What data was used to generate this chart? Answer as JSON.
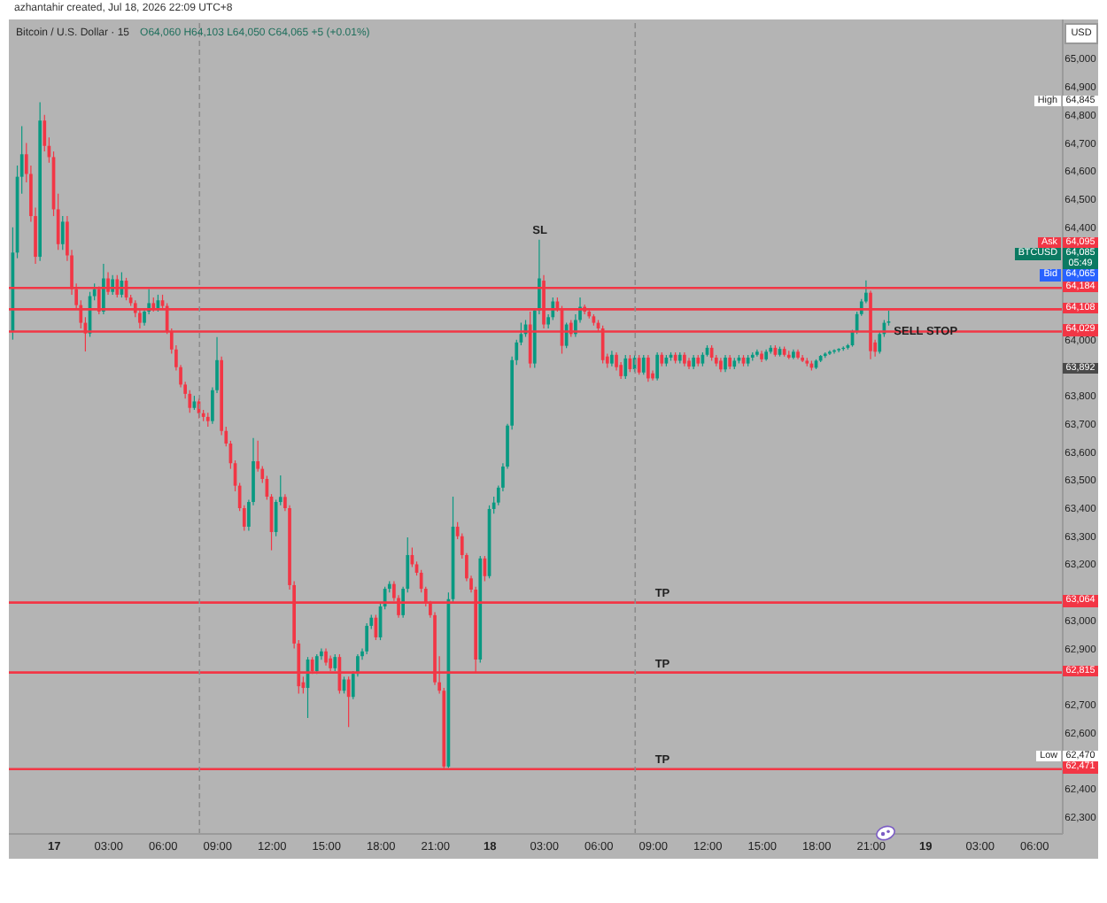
{
  "chart_data": {
    "type": "candlestick",
    "title": "Bitcoin / U.S. Dollar · 15",
    "subtitle": "O64,060 H64,103 L64,050 C64,065 +5 (+0.01%)",
    "ylabel": "USD",
    "annotations": [
      "azhantahir created, Jul 18, 2026 22:09 UTC+8",
      "Ask",
      "64,095",
      "BTCUSD",
      "64,085",
      "05:49",
      "Bid",
      "64,065",
      {
        "text": "SL",
        "x": "2026-07-18T02:45",
        "y": 64356
      },
      {
        "text": "TP",
        "x": "2026-07-18T09:30",
        "y": 63064
      },
      {
        "text": "TP",
        "x": "2026-07-18T09:30",
        "y": 62815
      },
      {
        "text": "TP",
        "x": "2026-07-18T09:30",
        "y": 62471
      },
      {
        "text": "SELL STOP",
        "x": "2026-07-19T00:00",
        "y": 64000
      },
      {
        "text": "High",
        "y": 64845
      },
      {
        "text": "64,845",
        "y": 64845
      },
      {
        "text": "63,892",
        "y": 63892
      },
      {
        "text": "Low",
        "y": 62470
      },
      {
        "text": "62,470",
        "y": 62470
      }
    ],
    "x": [
      "2026-07-16T21:45",
      "2026-07-16T22:00",
      "2026-07-16T22:15",
      "2026-07-16T22:30",
      "2026-07-16T22:45",
      "2026-07-16T23:00",
      "2026-07-16T23:15",
      "2026-07-16T23:30",
      "2026-07-16T23:45",
      "2026-07-17T00:00",
      "2026-07-17T00:15",
      "2026-07-17T00:30",
      "2026-07-17T00:45",
      "2026-07-17T01:00",
      "2026-07-17T01:15",
      "2026-07-17T01:30",
      "2026-07-17T01:45",
      "2026-07-17T02:00",
      "2026-07-17T02:15",
      "2026-07-17T02:30",
      "2026-07-17T02:45",
      "2026-07-17T03:00",
      "2026-07-17T03:15",
      "2026-07-17T03:30",
      "2026-07-17T03:45",
      "2026-07-17T04:00",
      "2026-07-17T04:15",
      "2026-07-17T04:30",
      "2026-07-17T04:45",
      "2026-07-17T05:00",
      "2026-07-17T05:15",
      "2026-07-17T05:30",
      "2026-07-17T05:45",
      "2026-07-17T06:00",
      "2026-07-17T06:15",
      "2026-07-17T06:30",
      "2026-07-17T06:45",
      "2026-07-17T07:00",
      "2026-07-17T07:15",
      "2026-07-17T07:30",
      "2026-07-17T07:45",
      "2026-07-17T08:00",
      "2026-07-17T08:15",
      "2026-07-17T08:30",
      "2026-07-17T08:45",
      "2026-07-17T09:00",
      "2026-07-17T09:15",
      "2026-07-17T09:30",
      "2026-07-17T09:45",
      "2026-07-17T10:00",
      "2026-07-17T10:15",
      "2026-07-17T10:30",
      "2026-07-17T10:45",
      "2026-07-17T11:00",
      "2026-07-17T11:15",
      "2026-07-17T11:30",
      "2026-07-17T11:45",
      "2026-07-17T12:00",
      "2026-07-17T12:15",
      "2026-07-17T12:30",
      "2026-07-17T12:45",
      "2026-07-17T13:00",
      "2026-07-17T13:15",
      "2026-07-17T13:30",
      "2026-07-17T13:45",
      "2026-07-17T14:00",
      "2026-07-17T14:15",
      "2026-07-17T14:30",
      "2026-07-17T14:45",
      "2026-07-17T15:00",
      "2026-07-17T15:15",
      "2026-07-17T15:30",
      "2026-07-17T15:45",
      "2026-07-17T16:00",
      "2026-07-17T16:15",
      "2026-07-17T16:30",
      "2026-07-17T16:45",
      "2026-07-17T17:00",
      "2026-07-17T17:15",
      "2026-07-17T17:30",
      "2026-07-17T17:45",
      "2026-07-17T18:00",
      "2026-07-17T18:15",
      "2026-07-17T18:30",
      "2026-07-17T18:45",
      "2026-07-17T19:00",
      "2026-07-17T19:15",
      "2026-07-17T19:30",
      "2026-07-17T19:45",
      "2026-07-17T20:00",
      "2026-07-17T20:15",
      "2026-07-17T20:30",
      "2026-07-17T20:45",
      "2026-07-17T21:00",
      "2026-07-17T21:15",
      "2026-07-17T21:30",
      "2026-07-17T21:45",
      "2026-07-17T22:00",
      "2026-07-17T22:15",
      "2026-07-17T22:30",
      "2026-07-17T22:45",
      "2026-07-17T23:00",
      "2026-07-17T23:15",
      "2026-07-17T23:30",
      "2026-07-17T23:45",
      "2026-07-18T00:00",
      "2026-07-18T00:15",
      "2026-07-18T00:30",
      "2026-07-18T00:45",
      "2026-07-18T01:00",
      "2026-07-18T01:15",
      "2026-07-18T01:30",
      "2026-07-18T01:45",
      "2026-07-18T02:00",
      "2026-07-18T02:15",
      "2026-07-18T02:30",
      "2026-07-18T02:45",
      "2026-07-18T03:00",
      "2026-07-18T03:15",
      "2026-07-18T03:30",
      "2026-07-18T03:45",
      "2026-07-18T04:00",
      "2026-07-18T04:15",
      "2026-07-18T04:30",
      "2026-07-18T04:45",
      "2026-07-18T05:00",
      "2026-07-18T05:15",
      "2026-07-18T05:30",
      "2026-07-18T05:45",
      "2026-07-18T06:00",
      "2026-07-18T06:15",
      "2026-07-18T06:30",
      "2026-07-18T06:45",
      "2026-07-18T07:00",
      "2026-07-18T07:15",
      "2026-07-18T07:30",
      "2026-07-18T07:45",
      "2026-07-18T08:00",
      "2026-07-18T08:15",
      "2026-07-18T08:30",
      "2026-07-18T08:45",
      "2026-07-18T09:00",
      "2026-07-18T09:15",
      "2026-07-18T09:30",
      "2026-07-18T09:45",
      "2026-07-18T10:00",
      "2026-07-18T10:15",
      "2026-07-18T10:30",
      "2026-07-18T10:45",
      "2026-07-18T11:00",
      "2026-07-18T11:15",
      "2026-07-18T11:30",
      "2026-07-18T11:45",
      "2026-07-18T12:00",
      "2026-07-18T12:15",
      "2026-07-18T12:30",
      "2026-07-18T12:45",
      "2026-07-18T13:00",
      "2026-07-18T13:15",
      "2026-07-18T13:30",
      "2026-07-18T13:45",
      "2026-07-18T14:00",
      "2026-07-18T14:15",
      "2026-07-18T14:30",
      "2026-07-18T14:45",
      "2026-07-18T15:00",
      "2026-07-18T15:15",
      "2026-07-18T15:30",
      "2026-07-18T15:45",
      "2026-07-18T16:00",
      "2026-07-18T16:15",
      "2026-07-18T16:30",
      "2026-07-18T16:45",
      "2026-07-18T17:00",
      "2026-07-18T17:15",
      "2026-07-18T17:30",
      "2026-07-18T17:45",
      "2026-07-18T18:00",
      "2026-07-18T18:15",
      "2026-07-18T18:30",
      "2026-07-18T18:45",
      "2026-07-18T19:00",
      "2026-07-18T19:15",
      "2026-07-18T19:30",
      "2026-07-18T19:45",
      "2026-07-18T20:00",
      "2026-07-18T20:15",
      "2026-07-18T20:30",
      "2026-07-18T20:45",
      "2026-07-18T21:00",
      "2026-07-18T21:15",
      "2026-07-18T21:30",
      "2026-07-18T21:45",
      "2026-07-18T22:00"
    ],
    "ohlc": [
      [
        64030,
        64400,
        64000,
        64310
      ],
      [
        64310,
        64620,
        64290,
        64580
      ],
      [
        64580,
        64760,
        64520,
        64660
      ],
      [
        64660,
        64700,
        64560,
        64590
      ],
      [
        64590,
        64620,
        64420,
        64440
      ],
      [
        64440,
        64470,
        64270,
        64295
      ],
      [
        64295,
        64845,
        64280,
        64780
      ],
      [
        64780,
        64800,
        64670,
        64690
      ],
      [
        64690,
        64720,
        64630,
        64650
      ],
      [
        64650,
        64670,
        64440,
        64464
      ],
      [
        64464,
        64520,
        64320,
        64340
      ],
      [
        64340,
        64440,
        64320,
        64420
      ],
      [
        64420,
        64440,
        64280,
        64300
      ],
      [
        64300,
        64320,
        64160,
        64180
      ],
      [
        64180,
        64200,
        64110,
        64123
      ],
      [
        64123,
        64140,
        64040,
        64060
      ],
      [
        64060,
        64080,
        63958,
        64022
      ],
      [
        64022,
        64170,
        64010,
        64155
      ],
      [
        64155,
        64200,
        64140,
        64180
      ],
      [
        64180,
        64190,
        64090,
        64100
      ],
      [
        64100,
        64270,
        64090,
        64218
      ],
      [
        64218,
        64240,
        64160,
        64170
      ],
      [
        64170,
        64230,
        64160,
        64215
      ],
      [
        64215,
        64230,
        64150,
        64160
      ],
      [
        64160,
        64240,
        64150,
        64210
      ],
      [
        64210,
        64220,
        64140,
        64150
      ],
      [
        64150,
        64160,
        64120,
        64130
      ],
      [
        64130,
        64140,
        64080,
        64095
      ],
      [
        64095,
        64110,
        64040,
        64060
      ],
      [
        64060,
        64110,
        64050,
        64100
      ],
      [
        64100,
        64180,
        64090,
        64130
      ],
      [
        64130,
        64150,
        64100,
        64110
      ],
      [
        64110,
        64160,
        64100,
        64140
      ],
      [
        64140,
        64160,
        64110,
        64120
      ],
      [
        64120,
        64130,
        64020,
        64030
      ],
      [
        64030,
        64040,
        63950,
        63965
      ],
      [
        63965,
        63980,
        63890,
        63902
      ],
      [
        63902,
        63910,
        63830,
        63840
      ],
      [
        63840,
        63850,
        63790,
        63807
      ],
      [
        63807,
        63820,
        63740,
        63757
      ],
      [
        63757,
        63800,
        63750,
        63780
      ],
      [
        63780,
        63790,
        63720,
        63738
      ],
      [
        63738,
        63750,
        63710,
        63725
      ],
      [
        63725,
        63740,
        63690,
        63710
      ],
      [
        63710,
        63830,
        63700,
        63820
      ],
      [
        63820,
        64009,
        63810,
        63927
      ],
      [
        63927,
        63940,
        63660,
        63675
      ],
      [
        63675,
        63690,
        63620,
        63630
      ],
      [
        63630,
        63640,
        63540,
        63560
      ],
      [
        63560,
        63570,
        63460,
        63480
      ],
      [
        63480,
        63490,
        63390,
        63400
      ],
      [
        63400,
        63410,
        63320,
        63334
      ],
      [
        63334,
        63430,
        63320,
        63422
      ],
      [
        63422,
        63650,
        63410,
        63567
      ],
      [
        63567,
        63640,
        63530,
        63540
      ],
      [
        63540,
        63550,
        63490,
        63504
      ],
      [
        63504,
        63515,
        63430,
        63441
      ],
      [
        63441,
        63450,
        63250,
        63315
      ],
      [
        63315,
        63430,
        63300,
        63422
      ],
      [
        63422,
        63517,
        63410,
        63440
      ],
      [
        63440,
        63450,
        63390,
        63400
      ],
      [
        63400,
        63410,
        63110,
        63126
      ],
      [
        63126,
        63140,
        62900,
        62918
      ],
      [
        62918,
        62930,
        62740,
        62766
      ],
      [
        62780,
        62800,
        62740,
        62760
      ],
      [
        62760,
        62870,
        62653,
        62861
      ],
      [
        62861,
        62870,
        62810,
        62820
      ],
      [
        62820,
        62880,
        62810,
        62873
      ],
      [
        62873,
        62900,
        62860,
        62890
      ],
      [
        62890,
        62900,
        62840,
        62850
      ],
      [
        62865,
        62875,
        62820,
        62830
      ],
      [
        62830,
        62880,
        62820,
        62870
      ],
      [
        62870,
        62880,
        62740,
        62750
      ],
      [
        62750,
        62800,
        62740,
        62790
      ],
      [
        62790,
        62800,
        62621,
        62728
      ],
      [
        62728,
        62820,
        62720,
        62810
      ],
      [
        62810,
        62880,
        62800,
        62873
      ],
      [
        62873,
        62900,
        62860,
        62890
      ],
      [
        62890,
        62990,
        62880,
        62981
      ],
      [
        62981,
        63020,
        62970,
        63010
      ],
      [
        63010,
        63020,
        62930,
        62940
      ],
      [
        62940,
        63060,
        62930,
        63050
      ],
      [
        63050,
        63120,
        63040,
        63113
      ],
      [
        63113,
        63140,
        63100,
        63130
      ],
      [
        63130,
        63140,
        63070,
        63080
      ],
      [
        63080,
        63090,
        63010,
        63019
      ],
      [
        63019,
        63120,
        63010,
        63113
      ],
      [
        63113,
        63296,
        63100,
        63233
      ],
      [
        63233,
        63260,
        63190,
        63200
      ],
      [
        63200,
        63210,
        63160,
        63170
      ],
      [
        63170,
        63180,
        63100,
        63113
      ],
      [
        63113,
        63120,
        63050,
        63063
      ],
      [
        63063,
        63070,
        63010,
        63019
      ],
      [
        63019,
        63030,
        62770,
        62780
      ],
      [
        62780,
        62873,
        62740,
        62750
      ],
      [
        62750,
        62760,
        62470,
        62480
      ],
      [
        62480,
        63100,
        62475,
        63076
      ],
      [
        63076,
        63441,
        63060,
        63334
      ],
      [
        63334,
        63350,
        63290,
        63300
      ],
      [
        63300,
        63310,
        63220,
        63233
      ],
      [
        63233,
        63240,
        63140,
        63150
      ],
      [
        63150,
        63160,
        63100,
        63110
      ],
      [
        63110,
        63120,
        62815,
        62861
      ],
      [
        62861,
        63230,
        62850,
        63221
      ],
      [
        63221,
        63230,
        63140,
        63158
      ],
      [
        63158,
        63410,
        63150,
        63397
      ],
      [
        63397,
        63441,
        63380,
        63420
      ],
      [
        63420,
        63480,
        63410,
        63473
      ],
      [
        63473,
        63560,
        63460,
        63548
      ],
      [
        63548,
        63700,
        63540,
        63694
      ],
      [
        63694,
        63940,
        63680,
        63927
      ],
      [
        63927,
        64000,
        63910,
        63990
      ],
      [
        63990,
        64060,
        63980,
        64020
      ],
      [
        64020,
        64070,
        64010,
        64054
      ],
      [
        64054,
        64100,
        63900,
        63915
      ],
      [
        63915,
        64110,
        63900,
        64104
      ],
      [
        64104,
        64356,
        64090,
        64218
      ],
      [
        64210,
        64230,
        64040,
        64054
      ],
      [
        64054,
        64090,
        64040,
        64080
      ],
      [
        64080,
        64150,
        64070,
        64136
      ],
      [
        64136,
        64150,
        64100,
        64110
      ],
      [
        64110,
        64120,
        63950,
        63978
      ],
      [
        63978,
        64060,
        63970,
        64054
      ],
      [
        64060,
        64070,
        64010,
        64020
      ],
      [
        64020,
        64090,
        64010,
        64070
      ],
      [
        64070,
        64150,
        64060,
        64117
      ],
      [
        64117,
        64125,
        64090,
        64100
      ],
      [
        64100,
        64110,
        64075,
        64083
      ],
      [
        64083,
        64090,
        64050,
        64060
      ],
      [
        64060,
        64070,
        64030,
        64040
      ],
      [
        64040,
        64050,
        63915,
        63927
      ],
      [
        63940,
        63950,
        63900,
        63915
      ],
      [
        63915,
        63960,
        63905,
        63946
      ],
      [
        63946,
        63955,
        63890,
        63902
      ],
      [
        63910,
        63920,
        63860,
        63870
      ],
      [
        63870,
        63945,
        63860,
        63933
      ],
      [
        63933,
        63945,
        63885,
        63895
      ],
      [
        63895,
        63945,
        63885,
        63935
      ],
      [
        63935,
        63945,
        63875,
        63883
      ],
      [
        63883,
        63945,
        63875,
        63936
      ],
      [
        63936,
        63945,
        63850,
        63862
      ],
      [
        63880,
        63890,
        63855,
        63862
      ],
      [
        63862,
        63955,
        63855,
        63946
      ],
      [
        63946,
        63955,
        63905,
        63915
      ],
      [
        63915,
        63945,
        63905,
        63936
      ],
      [
        63936,
        63955,
        63925,
        63946
      ],
      [
        63946,
        63955,
        63915,
        63925
      ],
      [
        63925,
        63955,
        63915,
        63946
      ],
      [
        63946,
        63955,
        63905,
        63915
      ],
      [
        63925,
        63935,
        63895,
        63904
      ],
      [
        63904,
        63945,
        63895,
        63936
      ],
      [
        63936,
        63945,
        63905,
        63915
      ],
      [
        63915,
        63955,
        63905,
        63946
      ],
      [
        63946,
        63980,
        63940,
        63971
      ],
      [
        63971,
        63980,
        63925,
        63936
      ],
      [
        63936,
        63945,
        63905,
        63915
      ],
      [
        63925,
        63935,
        63885,
        63894
      ],
      [
        63894,
        63945,
        63885,
        63936
      ],
      [
        63936,
        63945,
        63895,
        63904
      ],
      [
        63904,
        63935,
        63895,
        63925
      ],
      [
        63925,
        63945,
        63915,
        63936
      ],
      [
        63936,
        63945,
        63905,
        63915
      ],
      [
        63915,
        63945,
        63905,
        63936
      ],
      [
        63936,
        63955,
        63925,
        63946
      ],
      [
        63946,
        63965,
        63940,
        63957
      ],
      [
        63950,
        63960,
        63920,
        63930
      ],
      [
        63930,
        63965,
        63925,
        63957
      ],
      [
        63957,
        63980,
        63950,
        63971
      ],
      [
        63971,
        63980,
        63940,
        63946
      ],
      [
        63946,
        63975,
        63940,
        63967
      ],
      [
        63967,
        63975,
        63940,
        63946
      ],
      [
        63946,
        63960,
        63930,
        63936
      ],
      [
        63936,
        63965,
        63930,
        63957
      ],
      [
        63957,
        63965,
        63930,
        63936
      ],
      [
        63936,
        63945,
        63920,
        63925
      ],
      [
        63925,
        63935,
        63905,
        63915
      ],
      [
        63915,
        63925,
        63890,
        63900
      ],
      [
        63900,
        63930,
        63895,
        63925
      ],
      [
        63925,
        63945,
        63920,
        63942
      ],
      [
        63942,
        63955,
        63935,
        63950
      ],
      [
        63950,
        63962,
        63945,
        63957
      ],
      [
        63957,
        63966,
        63950,
        63962
      ],
      [
        63962,
        63970,
        63955,
        63967
      ],
      [
        63967,
        63976,
        63960,
        63971
      ],
      [
        63971,
        63985,
        63965,
        63980
      ],
      [
        63980,
        64035,
        63975,
        64028
      ],
      [
        64028,
        64100,
        64020,
        64091
      ],
      [
        64091,
        64145,
        64085,
        64136
      ],
      [
        64136,
        64211,
        64130,
        64167
      ],
      [
        64167,
        64175,
        63930,
        63959
      ],
      [
        63990,
        64000,
        63940,
        63957
      ],
      [
        63957,
        64030,
        63950,
        64020
      ],
      [
        64020,
        64070,
        64010,
        64060
      ],
      [
        64060,
        64103,
        64050,
        64065
      ]
    ],
    "colors": [
      "#089981",
      "#089981",
      "#089981",
      "#f23645",
      "#f23645",
      "#f23645",
      "#089981",
      "#f23645",
      "#f23645",
      "#f23645",
      "#f23645",
      "#089981",
      "#f23645",
      "#f23645",
      "#f23645",
      "#f23645",
      "#f23645",
      "#089981",
      "#089981",
      "#f23645",
      "#089981",
      "#f23645",
      "#089981",
      "#f23645",
      "#089981",
      "#f23645",
      "#f23645",
      "#f23645",
      "#f23645",
      "#089981",
      "#089981",
      "#f23645",
      "#089981",
      "#f23645",
      "#f23645",
      "#f23645",
      "#f23645",
      "#f23645",
      "#f23645",
      "#f23645",
      "#089981",
      "#f23645",
      "#f23645",
      "#f23645",
      "#089981",
      "#089981",
      "#f23645",
      "#f23645",
      "#f23645",
      "#f23645",
      "#f23645",
      "#f23645",
      "#089981",
      "#089981",
      "#f23645",
      "#f23645",
      "#f23645",
      "#f23645",
      "#089981",
      "#089981",
      "#f23645",
      "#f23645",
      "#f23645",
      "#f23645",
      "#f23645",
      "#089981",
      "#f23645",
      "#089981",
      "#089981",
      "#f23645",
      "#f23645",
      "#089981",
      "#f23645",
      "#089981",
      "#f23645",
      "#089981",
      "#089981",
      "#089981",
      "#089981",
      "#089981",
      "#f23645",
      "#089981",
      "#089981",
      "#089981",
      "#f23645",
      "#f23645",
      "#089981",
      "#089981",
      "#f23645",
      "#f23645",
      "#f23645",
      "#f23645",
      "#f23645",
      "#f23645",
      "#f23645",
      "#f23645",
      "#089981",
      "#089981",
      "#f23645",
      "#f23645",
      "#f23645",
      "#f23645",
      "#f23645",
      "#089981",
      "#f23645",
      "#089981",
      "#089981",
      "#089981",
      "#089981",
      "#089981",
      "#089981",
      "#089981",
      "#089981",
      "#089981",
      "#f23645",
      "#089981",
      "#089981",
      "#f23645",
      "#089981",
      "#089981",
      "#f23645",
      "#f23645",
      "#089981",
      "#f23645",
      "#089981",
      "#089981",
      "#f23645",
      "#f23645",
      "#f23645",
      "#f23645",
      "#f23645",
      "#f23645",
      "#089981",
      "#f23645",
      "#f23645",
      "#089981",
      "#f23645",
      "#089981",
      "#f23645",
      "#089981",
      "#f23645",
      "#f23645",
      "#089981",
      "#f23645",
      "#089981",
      "#089981",
      "#f23645",
      "#089981",
      "#f23645",
      "#f23645",
      "#089981",
      "#f23645",
      "#089981",
      "#089981",
      "#f23645",
      "#f23645",
      "#f23645",
      "#089981",
      "#f23645",
      "#089981",
      "#089981",
      "#f23645",
      "#089981",
      "#089981",
      "#089981",
      "#f23645",
      "#089981",
      "#089981",
      "#f23645",
      "#089981",
      "#f23645",
      "#f23645",
      "#089981",
      "#f23645",
      "#f23645",
      "#f23645",
      "#f23645",
      "#089981",
      "#089981",
      "#089981",
      "#089981",
      "#089981",
      "#089981",
      "#089981",
      "#089981",
      "#089981",
      "#089981",
      "#089981",
      "#089981",
      "#f23645",
      "#f23645",
      "#089981",
      "#089981",
      "#089981"
    ],
    "xlim": [
      "2026-07-16T21:30",
      "2026-07-19T07:33"
    ],
    "ylim": [
      62240,
      65140
    ],
    "xticks": [
      {
        "value": "2026-07-17T00:00",
        "label": "17"
      },
      {
        "value": "2026-07-17T03:00",
        "label": "03:00"
      },
      {
        "value": "2026-07-17T06:00",
        "label": "06:00"
      },
      {
        "value": "2026-07-17T09:00",
        "label": "09:00"
      },
      {
        "value": "2026-07-17T12:00",
        "label": "12:00"
      },
      {
        "value": "2026-07-17T15:00",
        "label": "15:00"
      },
      {
        "value": "2026-07-17T18:00",
        "label": "18:00"
      },
      {
        "value": "2026-07-17T21:00",
        "label": "21:00"
      },
      {
        "value": "2026-07-18T00:00",
        "label": "18"
      },
      {
        "value": "2026-07-18T03:00",
        "label": "03:00"
      },
      {
        "value": "2026-07-18T06:00",
        "label": "06:00"
      },
      {
        "value": "2026-07-18T09:00",
        "label": "09:00"
      },
      {
        "value": "2026-07-18T12:00",
        "label": "12:00"
      },
      {
        "value": "2026-07-18T15:00",
        "label": "15:00"
      },
      {
        "value": "2026-07-18T18:00",
        "label": "18:00"
      },
      {
        "value": "2026-07-18T21:00",
        "label": "21:00"
      },
      {
        "value": "2026-07-19T00:00",
        "label": "19"
      },
      {
        "value": "2026-07-19T03:00",
        "label": "03:00"
      },
      {
        "value": "2026-07-19T06:00",
        "label": "06:00"
      }
    ],
    "yticks": [
      {
        "value": 62300,
        "label": "62,300"
      },
      {
        "value": 62400,
        "label": "62,400"
      },
      {
        "value": 62600,
        "label": "62,600"
      },
      {
        "value": 62700,
        "label": "62,700"
      },
      {
        "value": 62900,
        "label": "62,900"
      },
      {
        "value": 63000,
        "label": "63,000"
      },
      {
        "value": 63200,
        "label": "63,200"
      },
      {
        "value": 63300,
        "label": "63,300"
      },
      {
        "value": 63400,
        "label": "63,400"
      },
      {
        "value": 63500,
        "label": "63,500"
      },
      {
        "value": 63600,
        "label": "63,600"
      },
      {
        "value": 63700,
        "label": "63,700"
      },
      {
        "value": 63800,
        "label": "63,800"
      },
      {
        "value": 64000,
        "label": "64,000"
      },
      {
        "value": 64400,
        "label": "64,400"
      },
      {
        "value": 64500,
        "label": "64,500"
      },
      {
        "value": 64600,
        "label": "64,600"
      },
      {
        "value": 64700,
        "label": "64,700"
      },
      {
        "value": 64800,
        "label": "64,800"
      },
      {
        "value": 64900,
        "label": "64,900"
      },
      {
        "value": 65000,
        "label": "65,000"
      }
    ],
    "ref_lines": [
      {
        "axis": "y",
        "value": 64184,
        "label": "64,184",
        "color": "#f23645"
      },
      {
        "axis": "y",
        "value": 64108,
        "label": "64,108",
        "color": "#f23645"
      },
      {
        "axis": "y",
        "value": 64029,
        "label": "64,029",
        "color": "#f23645"
      },
      {
        "axis": "y",
        "value": 63064,
        "label": "63,064",
        "color": "#f23645"
      },
      {
        "axis": "y",
        "value": 62815,
        "label": "62,815",
        "color": "#f23645"
      },
      {
        "axis": "y",
        "value": 62471,
        "label": "62,471",
        "color": "#f23645"
      },
      {
        "axis": "x",
        "value": "2026-07-17T08:00",
        "color": "#8c8c8c",
        "line_style": "dashed"
      },
      {
        "axis": "x",
        "value": "2026-07-18T08:00",
        "color": "#8c8c8c",
        "line_style": "dashed"
      }
    ]
  }
}
